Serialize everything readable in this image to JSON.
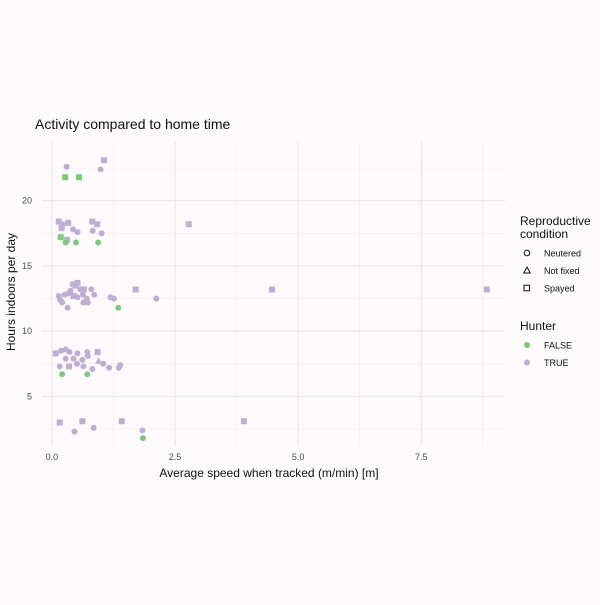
{
  "chart_data": {
    "type": "scatter",
    "title": "Activity compared to home time",
    "xlabel": "Average speed when tracked (m/min) [m]",
    "ylabel": "Hours indoors per day",
    "xlim": [
      -0.2,
      9.2
    ],
    "ylim": [
      1.2,
      24.5
    ],
    "x_ticks": [
      0.0,
      2.5,
      5.0,
      7.5
    ],
    "x_tick_labels": [
      "0.0",
      "2.5",
      "5.0",
      "7.5"
    ],
    "y_ticks": [
      5,
      10,
      15,
      20
    ],
    "y_tick_labels": [
      "5",
      "10",
      "15",
      "20"
    ],
    "grid": true,
    "legend_placement": "right",
    "legends": [
      {
        "title": "Reproductive condition",
        "type": "shape",
        "entries": [
          {
            "label": "Neutered",
            "shape": "circle"
          },
          {
            "label": "Not fixed",
            "shape": "triangle"
          },
          {
            "label": "Spayed",
            "shape": "square"
          }
        ]
      },
      {
        "title": "Hunter",
        "type": "color",
        "entries": [
          {
            "label": "FALSE",
            "color": "#7fc97f"
          },
          {
            "label": "TRUE",
            "color": "#beaed4"
          }
        ]
      }
    ],
    "series": [
      {
        "name": "FALSE",
        "color": "#7fc97f",
        "points": [
          {
            "x": 0.27,
            "y": 21.8,
            "shape": "square"
          },
          {
            "x": 0.55,
            "y": 21.8,
            "shape": "square"
          },
          {
            "x": 0.18,
            "y": 17.2,
            "shape": "square"
          },
          {
            "x": 0.28,
            "y": 16.8,
            "shape": "circle"
          },
          {
            "x": 0.49,
            "y": 16.8,
            "shape": "circle"
          },
          {
            "x": 0.94,
            "y": 16.8,
            "shape": "circle"
          },
          {
            "x": 1.35,
            "y": 11.8,
            "shape": "circle"
          },
          {
            "x": 0.21,
            "y": 6.7,
            "shape": "circle"
          },
          {
            "x": 0.72,
            "y": 6.7,
            "shape": "circle"
          },
          {
            "x": 1.85,
            "y": 1.8,
            "shape": "circle"
          }
        ]
      },
      {
        "name": "TRUE",
        "color": "#beaed4",
        "points": [
          {
            "x": 0.3,
            "y": 22.6,
            "shape": "circle"
          },
          {
            "x": 1.06,
            "y": 23.1,
            "shape": "square"
          },
          {
            "x": 0.99,
            "y": 22.4,
            "shape": "circle"
          },
          {
            "x": 0.14,
            "y": 18.4,
            "shape": "square"
          },
          {
            "x": 0.21,
            "y": 18.2,
            "shape": "circle"
          },
          {
            "x": 0.33,
            "y": 18.3,
            "shape": "square"
          },
          {
            "x": 0.2,
            "y": 17.9,
            "shape": "square"
          },
          {
            "x": 0.43,
            "y": 17.8,
            "shape": "circle"
          },
          {
            "x": 0.52,
            "y": 17.6,
            "shape": "circle"
          },
          {
            "x": 0.82,
            "y": 18.4,
            "shape": "square"
          },
          {
            "x": 0.92,
            "y": 18.2,
            "shape": "square"
          },
          {
            "x": 0.83,
            "y": 17.7,
            "shape": "circle"
          },
          {
            "x": 1.01,
            "y": 17.5,
            "shape": "circle"
          },
          {
            "x": 0.31,
            "y": 17.0,
            "shape": "square"
          },
          {
            "x": 2.78,
            "y": 18.2,
            "shape": "square"
          },
          {
            "x": 0.42,
            "y": 13.6,
            "shape": "circle"
          },
          {
            "x": 0.48,
            "y": 13.5,
            "shape": "square"
          },
          {
            "x": 0.52,
            "y": 13.7,
            "shape": "square"
          },
          {
            "x": 0.38,
            "y": 13.1,
            "shape": "circle"
          },
          {
            "x": 0.58,
            "y": 13.2,
            "shape": "circle"
          },
          {
            "x": 0.65,
            "y": 13.2,
            "shape": "square"
          },
          {
            "x": 0.8,
            "y": 13.2,
            "shape": "circle"
          },
          {
            "x": 0.14,
            "y": 12.7,
            "shape": "circle"
          },
          {
            "x": 0.26,
            "y": 12.8,
            "shape": "circle"
          },
          {
            "x": 0.34,
            "y": 12.9,
            "shape": "circle"
          },
          {
            "x": 0.44,
            "y": 12.7,
            "shape": "square"
          },
          {
            "x": 0.52,
            "y": 12.6,
            "shape": "circle"
          },
          {
            "x": 0.63,
            "y": 12.8,
            "shape": "circle"
          },
          {
            "x": 0.71,
            "y": 12.5,
            "shape": "circle"
          },
          {
            "x": 0.86,
            "y": 12.8,
            "shape": "circle"
          },
          {
            "x": 0.17,
            "y": 12.4,
            "shape": "circle"
          },
          {
            "x": 0.21,
            "y": 12.2,
            "shape": "circle"
          },
          {
            "x": 0.64,
            "y": 12.2,
            "shape": "circle"
          },
          {
            "x": 0.73,
            "y": 12.2,
            "shape": "circle"
          },
          {
            "x": 0.32,
            "y": 11.8,
            "shape": "circle"
          },
          {
            "x": 1.19,
            "y": 12.6,
            "shape": "circle"
          },
          {
            "x": 1.26,
            "y": 12.5,
            "shape": "circle"
          },
          {
            "x": 1.7,
            "y": 13.2,
            "shape": "square"
          },
          {
            "x": 2.12,
            "y": 12.5,
            "shape": "circle"
          },
          {
            "x": 4.47,
            "y": 13.2,
            "shape": "square"
          },
          {
            "x": 8.83,
            "y": 13.2,
            "shape": "square"
          },
          {
            "x": 0.08,
            "y": 8.3,
            "shape": "square"
          },
          {
            "x": 0.19,
            "y": 8.5,
            "shape": "circle"
          },
          {
            "x": 0.28,
            "y": 8.6,
            "shape": "circle"
          },
          {
            "x": 0.36,
            "y": 8.4,
            "shape": "circle"
          },
          {
            "x": 0.52,
            "y": 8.3,
            "shape": "circle"
          },
          {
            "x": 0.72,
            "y": 8.4,
            "shape": "circle"
          },
          {
            "x": 0.73,
            "y": 8.1,
            "shape": "circle"
          },
          {
            "x": 0.93,
            "y": 8.4,
            "shape": "square"
          },
          {
            "x": 0.28,
            "y": 7.9,
            "shape": "circle"
          },
          {
            "x": 0.44,
            "y": 7.9,
            "shape": "circle"
          },
          {
            "x": 0.62,
            "y": 7.8,
            "shape": "circle"
          },
          {
            "x": 0.51,
            "y": 7.5,
            "shape": "circle"
          },
          {
            "x": 0.95,
            "y": 7.7,
            "shape": "triangle"
          },
          {
            "x": 1.04,
            "y": 7.5,
            "shape": "circle"
          },
          {
            "x": 1.39,
            "y": 7.4,
            "shape": "circle"
          },
          {
            "x": 0.16,
            "y": 7.3,
            "shape": "circle"
          },
          {
            "x": 0.35,
            "y": 7.3,
            "shape": "square"
          },
          {
            "x": 0.64,
            "y": 7.3,
            "shape": "circle"
          },
          {
            "x": 0.82,
            "y": 7.1,
            "shape": "circle"
          },
          {
            "x": 1.16,
            "y": 7.2,
            "shape": "circle"
          },
          {
            "x": 1.36,
            "y": 7.2,
            "shape": "circle"
          },
          {
            "x": 0.16,
            "y": 3.0,
            "shape": "square"
          },
          {
            "x": 0.62,
            "y": 3.1,
            "shape": "square"
          },
          {
            "x": 0.46,
            "y": 2.3,
            "shape": "circle"
          },
          {
            "x": 0.85,
            "y": 2.6,
            "shape": "circle"
          },
          {
            "x": 1.42,
            "y": 3.1,
            "shape": "square"
          },
          {
            "x": 1.84,
            "y": 2.4,
            "shape": "circle"
          },
          {
            "x": 3.9,
            "y": 3.1,
            "shape": "square"
          }
        ]
      }
    ]
  }
}
